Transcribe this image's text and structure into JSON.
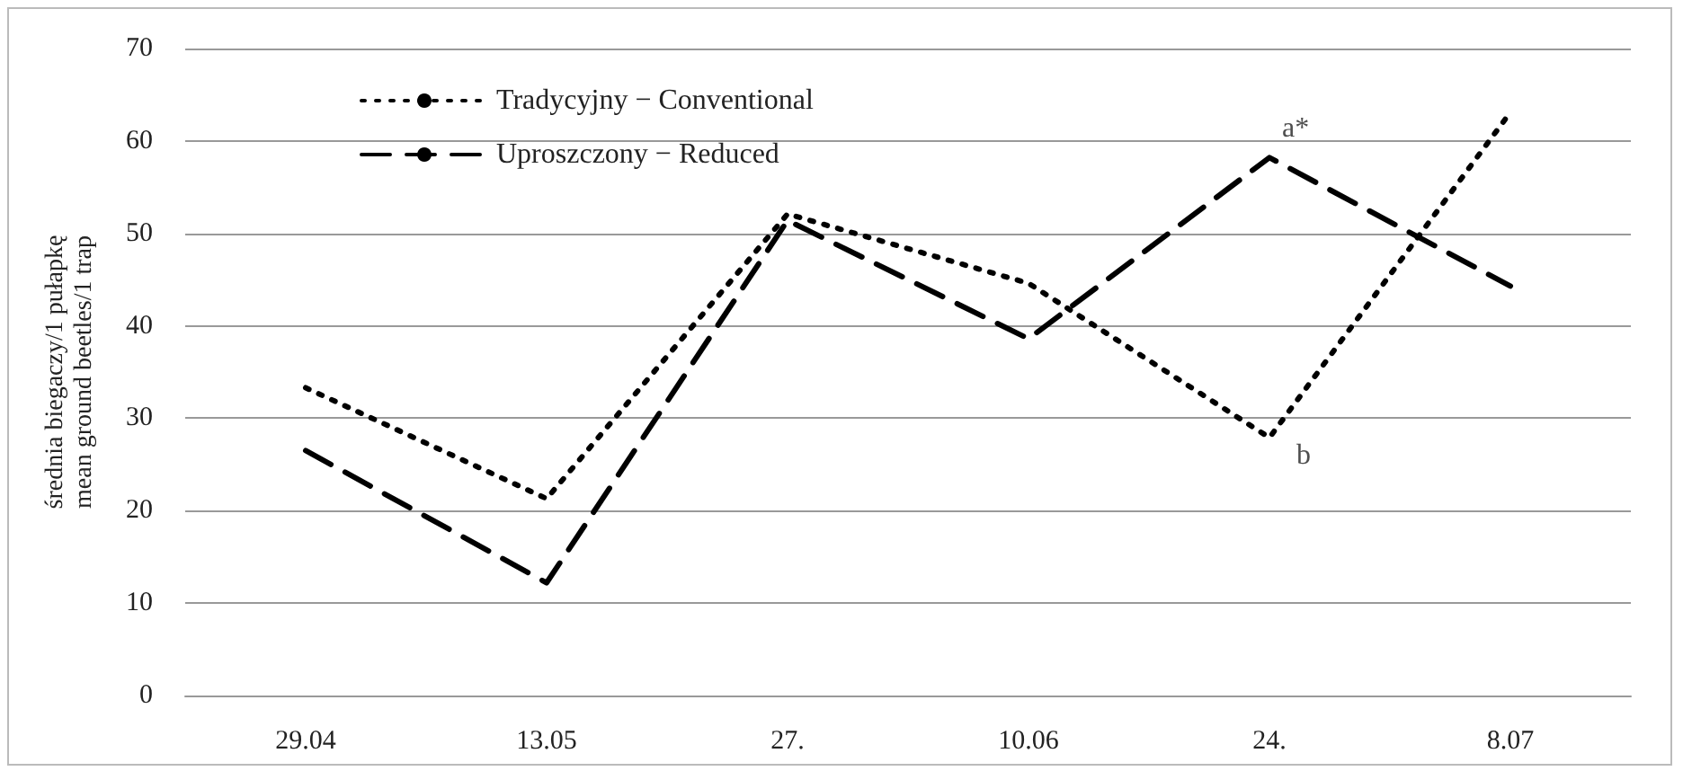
{
  "chart_data": {
    "type": "line",
    "ylabel": "średnia biegaczy/1 pułapkę\nmean ground beetles/1 trap",
    "categories": [
      "29.04",
      "13.05",
      "27.",
      "10.06",
      "24.",
      "8.07"
    ],
    "series": [
      {
        "name": "Tradycyjny − Conventional",
        "color": "#000000",
        "line_style": "dotted",
        "values": [
          33.3,
          21.3,
          52.1,
          44.6,
          27.9,
          63.1
        ]
      },
      {
        "name": "Uproszczony − Reduced",
        "color": "#000000",
        "line_style": "dashed",
        "values": [
          26.5,
          12.2,
          51.4,
          38.6,
          58.2,
          44.3
        ]
      }
    ],
    "ylim": [
      0,
      70
    ],
    "yticks": [
      0,
      10,
      20,
      30,
      40,
      50,
      60,
      70
    ],
    "grid": "y",
    "legend": "top left",
    "marker": "none",
    "annotations": [
      {
        "text": "a*",
        "x": "24.",
        "y": 58.2
      },
      {
        "text": "b",
        "x": "24.",
        "y": 27.9
      }
    ]
  }
}
